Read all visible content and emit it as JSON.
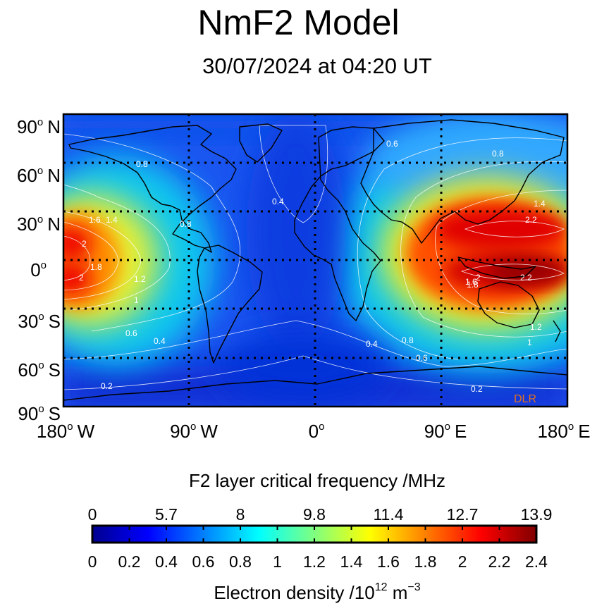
{
  "title": "NmF2 Model",
  "subtitle": "30/07/2024 at 04:20 UT",
  "map": {
    "lat_labels": [
      {
        "deg": "90",
        "hem": "N"
      },
      {
        "deg": "60",
        "hem": "N"
      },
      {
        "deg": "30",
        "hem": "N"
      },
      {
        "deg": "0",
        "hem": ""
      },
      {
        "deg": "30",
        "hem": "S"
      },
      {
        "deg": "60",
        "hem": "S"
      },
      {
        "deg": "90",
        "hem": "S"
      }
    ],
    "lon_labels": [
      {
        "deg": "180",
        "hem": "W"
      },
      {
        "deg": "90",
        "hem": "W"
      },
      {
        "deg": "0",
        "hem": ""
      },
      {
        "deg": "90",
        "hem": "E"
      },
      {
        "deg": "180",
        "hem": "E"
      }
    ],
    "watermark": "DLR",
    "watermark_color": "#e07020",
    "contour_labels": [
      "0.2",
      "0.4",
      "0.6",
      "0.8",
      "1",
      "1.2",
      "1.4",
      "1.6",
      "1.8",
      "2",
      "2.2"
    ],
    "field": {
      "type": "heatmap",
      "unit": "10^12 m^-3",
      "description_of_value_range": [
        0,
        2.4
      ],
      "hotspots": [
        {
          "lon": 140,
          "lat": 15,
          "peak": 2.3
        },
        {
          "lon": 140,
          "lat": -5,
          "peak": 2.35
        },
        {
          "lon": -180,
          "lat": 12,
          "peak": 2.1
        },
        {
          "lon": -180,
          "lat": -8,
          "peak": 2.1
        }
      ],
      "minima": [
        {
          "lon": -20,
          "lat": 40,
          "value": 0.35
        },
        {
          "lon": -15,
          "lat": -50,
          "value": 0.3
        }
      ]
    }
  },
  "colorbar": {
    "title": "F2 layer critical frequency /MHz",
    "top_ticks": [
      "0",
      "5.7",
      "8",
      "9.8",
      "11.4",
      "12.7",
      "13.9"
    ],
    "bottom_ticks": [
      "0",
      "0.2",
      "0.4",
      "0.6",
      "0.8",
      "1",
      "1.2",
      "1.4",
      "1.6",
      "1.8",
      "2",
      "2.2",
      "2.4"
    ],
    "axis_label_prefix": "Electron density /10",
    "axis_label_exp": "12",
    "axis_label_unit": " m",
    "axis_label_unit_exp": "−3"
  }
}
